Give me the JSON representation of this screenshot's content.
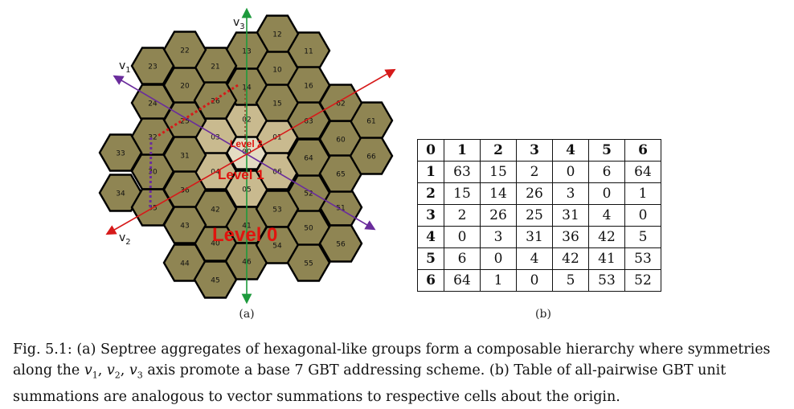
{
  "figure": {
    "panel_a": {
      "label": "(a)",
      "axes": [
        {
          "name": "v",
          "sub": "1"
        },
        {
          "name": "v",
          "sub": "2"
        },
        {
          "name": "v",
          "sub": "3"
        }
      ],
      "level_labels": [
        "Level 2",
        "Level 1",
        "Level 0"
      ],
      "cells": [
        "00",
        "01",
        "02",
        "03",
        "04",
        "05",
        "06",
        "10",
        "11",
        "12",
        "13",
        "14",
        "15",
        "16",
        "20",
        "21",
        "22",
        "23",
        "24",
        "25",
        "26",
        "30",
        "31",
        "32",
        "33",
        "34",
        "35",
        "36",
        "40",
        "41",
        "42",
        "43",
        "44",
        "45",
        "46",
        "50",
        "51",
        "52",
        "53",
        "54",
        "55",
        "56",
        "60",
        "61",
        "62",
        "63",
        "64",
        "65",
        "66"
      ],
      "colors": {
        "outer": "#8f8553",
        "level1": "#c9ba8f",
        "center": "#e4dcc3",
        "v1_axis": "#6a2c9c",
        "v2_axis": "#d61a1a",
        "v3_axis": "#1d9a3c",
        "level_text": "#e0140e"
      }
    },
    "panel_b": {
      "label": "(b)",
      "header": [
        "0",
        "1",
        "2",
        "3",
        "4",
        "5",
        "6"
      ],
      "rows": [
        [
          "1",
          "63",
          "15",
          "2",
          "0",
          "6",
          "64"
        ],
        [
          "2",
          "15",
          "14",
          "26",
          "3",
          "0",
          "1"
        ],
        [
          "3",
          "2",
          "26",
          "25",
          "31",
          "4",
          "0"
        ],
        [
          "4",
          "0",
          "3",
          "31",
          "36",
          "42",
          "5"
        ],
        [
          "5",
          "6",
          "0",
          "4",
          "42",
          "41",
          "53"
        ],
        [
          "6",
          "64",
          "1",
          "0",
          "5",
          "53",
          "52"
        ]
      ]
    }
  },
  "caption": "Fig. 5.1: (a) Septree aggregates of hexagonal-like groups form a composable hierarchy where symmetries along the v1, v2, v3 axis promote a base 7 GBT addressing scheme. (b) Table of all-pairwise GBT unit summations are analogous to vector summations to respective cells about the origin."
}
